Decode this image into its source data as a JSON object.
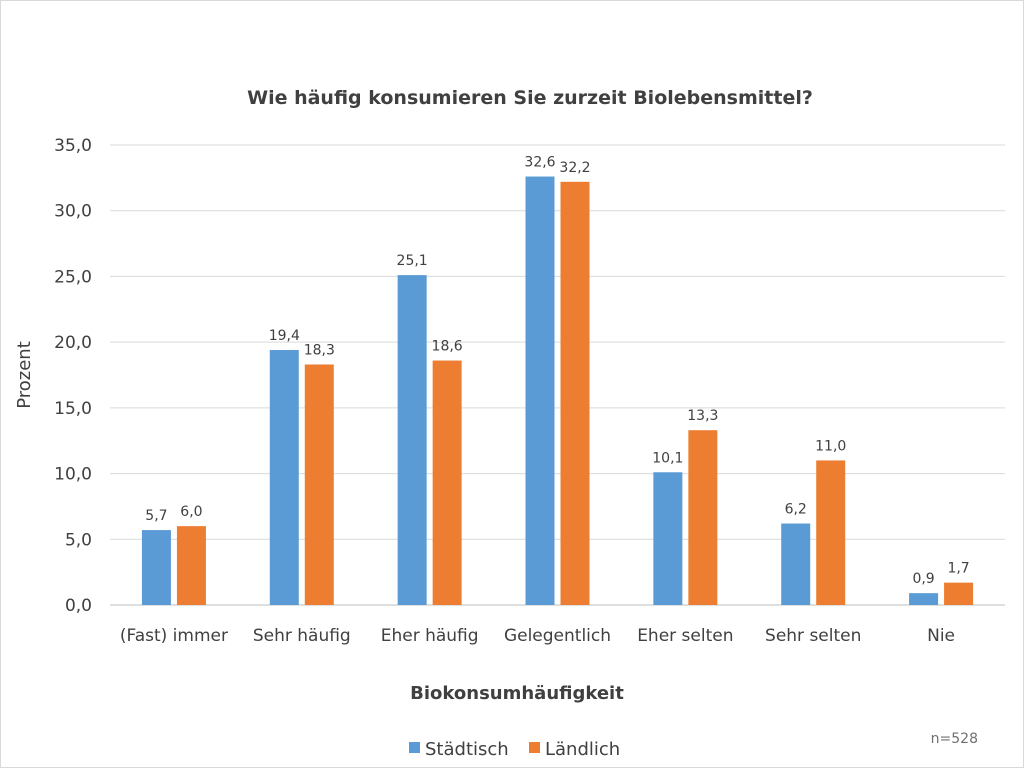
{
  "chart_data": {
    "type": "bar",
    "title": "Wie  häufig konsumieren Sie zurzeit Biolebensmittel?",
    "xlabel": "Biokonsumhäufigkeit",
    "ylabel": "Prozent",
    "ylim": [
      0,
      35
    ],
    "yticks": [
      "0,0",
      "5,0",
      "10,0",
      "15,0",
      "20,0",
      "25,0",
      "30,0",
      "35,0"
    ],
    "ytick_values": [
      0,
      5,
      10,
      15,
      20,
      25,
      30,
      35
    ],
    "categories": [
      "(Fast) immer",
      "Sehr häufig",
      "Eher häufig",
      "Gelegentlich",
      "Eher selten",
      "Sehr selten",
      "Nie"
    ],
    "series": [
      {
        "name": "Städtisch",
        "color": "#5B9BD5",
        "values": [
          5.7,
          19.4,
          25.1,
          32.6,
          10.1,
          6.2,
          0.9
        ],
        "labels": [
          "5,7",
          "19,4",
          "25,1",
          "32,6",
          "10,1",
          "6,2",
          "0,9"
        ]
      },
      {
        "name": "Ländlich",
        "color": "#ED7D31",
        "values": [
          6.0,
          18.3,
          18.6,
          32.2,
          13.3,
          11.0,
          1.7
        ],
        "labels": [
          "6,0",
          "18,3",
          "18,6",
          "32,2",
          "13,3",
          "11,0",
          "1,7"
        ]
      }
    ],
    "grid": true,
    "legend_position": "bottom",
    "note": "n=528"
  }
}
